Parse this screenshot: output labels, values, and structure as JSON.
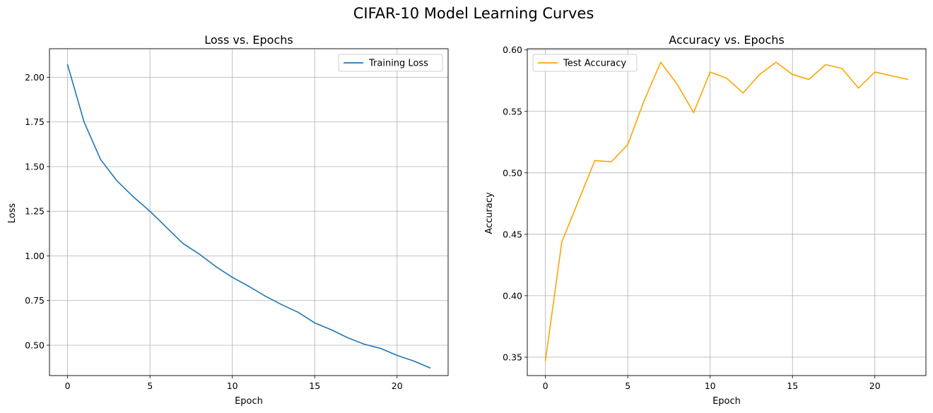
{
  "figure": {
    "suptitle": "CIFAR-10 Model Learning Curves"
  },
  "chart_data": [
    {
      "type": "line",
      "title": "Loss vs. Epochs",
      "xlabel": "Epoch",
      "ylabel": "Loss",
      "xlim": [
        -1.1,
        23.1
      ],
      "ylim": [
        0.33,
        2.16
      ],
      "xticks": [
        0,
        5,
        10,
        15,
        20
      ],
      "xtick_labels": [
        "0",
        "5",
        "10",
        "15",
        "20"
      ],
      "yticks": [
        0.5,
        0.75,
        1.0,
        1.25,
        1.5,
        1.75,
        2.0
      ],
      "ytick_labels": [
        "0.50",
        "0.75",
        "1.00",
        "1.25",
        "1.50",
        "1.75",
        "2.00"
      ],
      "grid": true,
      "legend_position": "upper right",
      "series": [
        {
          "name": "Training Loss",
          "color": "#1f77b4",
          "x": [
            0,
            1,
            2,
            3,
            4,
            5,
            6,
            7,
            8,
            9,
            10,
            11,
            12,
            13,
            14,
            15,
            16,
            17,
            18,
            19,
            20,
            21,
            22
          ],
          "y": [
            2.07,
            1.75,
            1.54,
            1.42,
            1.33,
            1.25,
            1.16,
            1.07,
            1.01,
            0.94,
            0.88,
            0.83,
            0.775,
            0.727,
            0.684,
            0.625,
            0.587,
            0.542,
            0.506,
            0.482,
            0.443,
            0.412,
            0.373
          ]
        }
      ]
    },
    {
      "type": "line",
      "title": "Accuracy vs. Epochs",
      "xlabel": "Epoch",
      "ylabel": "Accuracy",
      "xlim": [
        -1.1,
        23.1
      ],
      "ylim": [
        0.335,
        0.601
      ],
      "xticks": [
        0,
        5,
        10,
        15,
        20
      ],
      "xtick_labels": [
        "0",
        "5",
        "10",
        "15",
        "20"
      ],
      "yticks": [
        0.35,
        0.4,
        0.45,
        0.5,
        0.55,
        0.6
      ],
      "ytick_labels": [
        "0.35",
        "0.40",
        "0.45",
        "0.50",
        "0.55",
        "0.60"
      ],
      "grid": true,
      "legend_position": "upper left",
      "series": [
        {
          "name": "Test Accuracy",
          "color": "#ffa500",
          "x": [
            0,
            1,
            2,
            3,
            4,
            5,
            6,
            7,
            8,
            9,
            10,
            11,
            12,
            13,
            14,
            15,
            16,
            17,
            18,
            19,
            20,
            21,
            22
          ],
          "y": [
            0.347,
            0.444,
            0.477,
            0.51,
            0.509,
            0.523,
            0.559,
            0.59,
            0.572,
            0.549,
            0.582,
            0.577,
            0.565,
            0.58,
            0.59,
            0.58,
            0.576,
            0.588,
            0.585,
            0.569,
            0.582,
            0.579,
            0.576
          ]
        }
      ]
    }
  ]
}
